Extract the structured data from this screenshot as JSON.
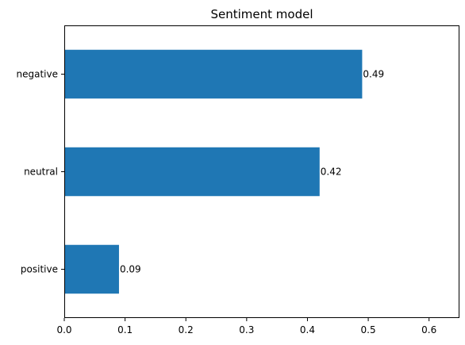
{
  "chart_data": {
    "type": "bar",
    "orientation": "horizontal",
    "title": "Sentiment model",
    "categories": [
      "negative",
      "neutral",
      "positive"
    ],
    "values": [
      0.49,
      0.42,
      0.09
    ],
    "data_labels": [
      "0.49",
      "0.42",
      "0.09"
    ],
    "xlim": [
      0,
      0.65
    ],
    "xticks": [
      0.0,
      0.1,
      0.2,
      0.3,
      0.4,
      0.5,
      0.6
    ],
    "xtick_labels": [
      "0.0",
      "0.1",
      "0.2",
      "0.3",
      "0.4",
      "0.5",
      "0.6"
    ],
    "xlabel": "",
    "ylabel": "",
    "grid": false,
    "bar_color": "#1f77b4"
  }
}
